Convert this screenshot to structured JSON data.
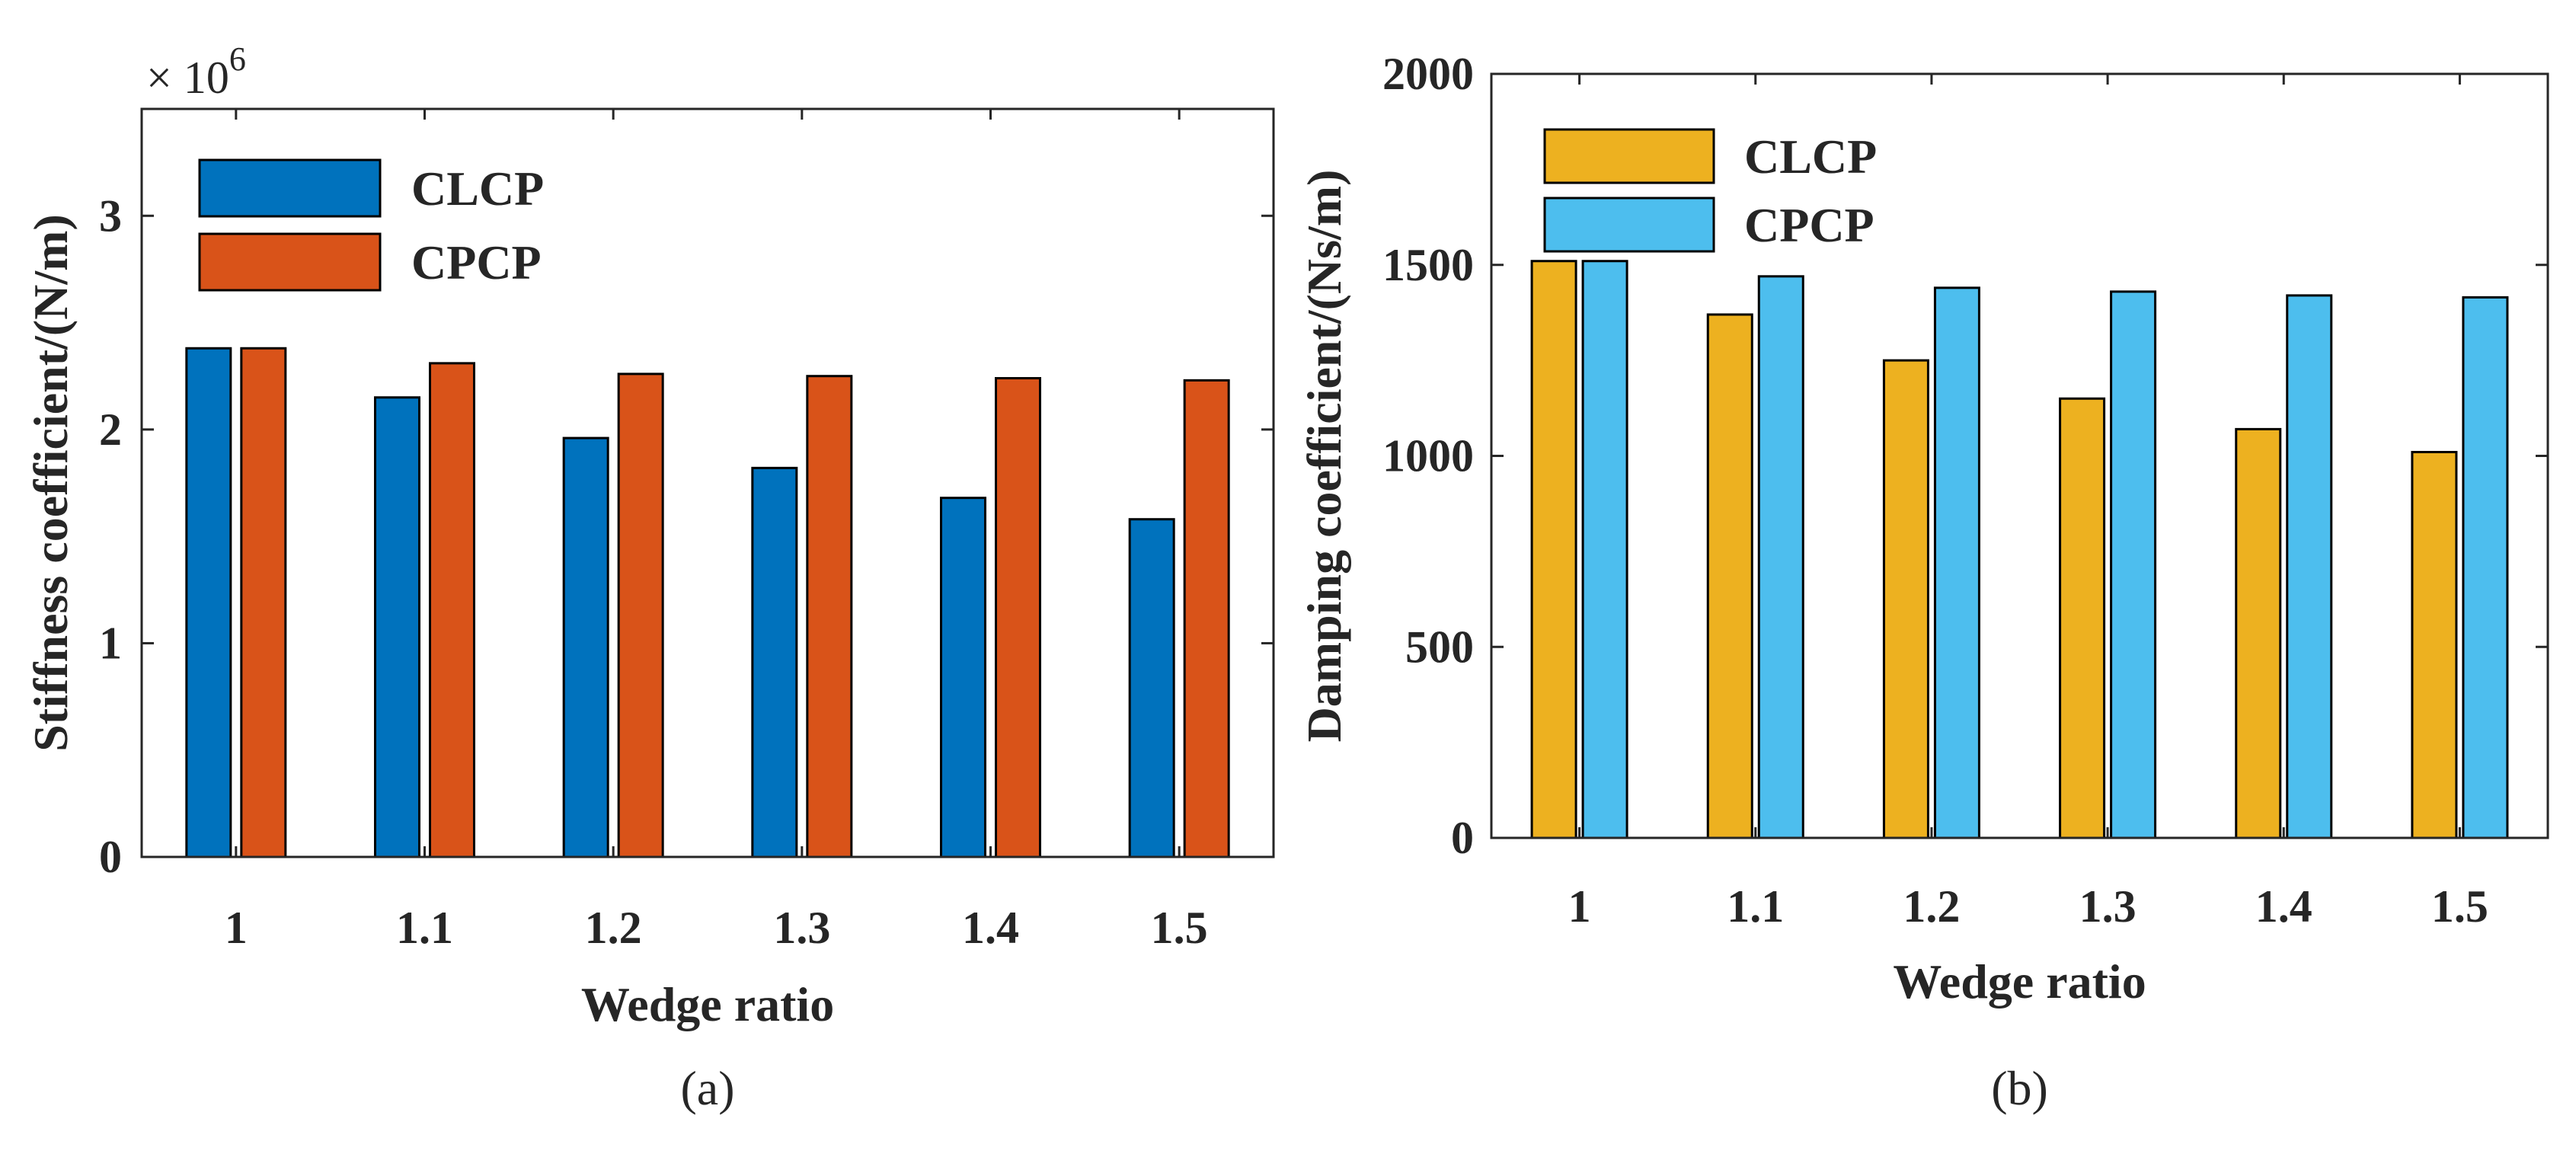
{
  "chart_data": [
    {
      "type": "bar",
      "panel_label": "(a)",
      "categories": [
        "1",
        "1.1",
        "1.2",
        "1.3",
        "1.4",
        "1.5"
      ],
      "series": [
        {
          "name": "CLCP",
          "color": "#0072BD",
          "values": [
            2.38,
            2.15,
            1.96,
            1.82,
            1.68,
            1.58
          ]
        },
        {
          "name": "CPCP",
          "color": "#D95319",
          "values": [
            2.38,
            2.31,
            2.26,
            2.25,
            2.24,
            2.23
          ]
        }
      ],
      "xlabel": "Wedge ratio",
      "ylabel": "Stiffness coefficient/(N/m)",
      "ylim": [
        0,
        3.5
      ],
      "yticks": [
        "0",
        "1",
        "2",
        "3"
      ],
      "y_multiplier": {
        "base": "× 10",
        "exponent": "6"
      },
      "legend_position": "top-left"
    },
    {
      "type": "bar",
      "panel_label": "(b)",
      "categories": [
        "1",
        "1.1",
        "1.2",
        "1.3",
        "1.4",
        "1.5"
      ],
      "series": [
        {
          "name": "CLCP",
          "color": "#EDB120",
          "values": [
            1510,
            1370,
            1250,
            1150,
            1070,
            1010
          ]
        },
        {
          "name": "CPCP",
          "color": "#4DBEEE",
          "values": [
            1510,
            1470,
            1440,
            1430,
            1420,
            1415
          ]
        }
      ],
      "xlabel": "Wedge ratio",
      "ylabel": "Damping coefficient/(Ns/m)",
      "ylim": [
        0,
        2000
      ],
      "yticks": [
        "0",
        "500",
        "1000",
        "1500",
        "2000"
      ],
      "legend_position": "top-left"
    }
  ]
}
